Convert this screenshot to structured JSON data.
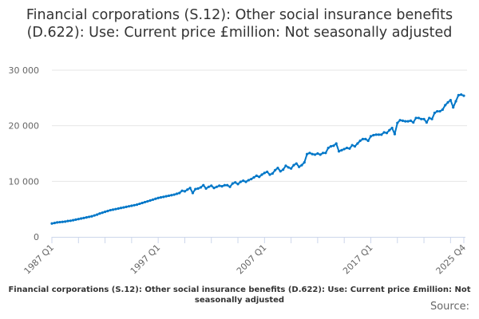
{
  "chart_data": {
    "type": "line",
    "title": "Financial corporations (S.12): Other social insurance benefits (D.622): Use: Current price £million: Not seasonally adjusted",
    "caption": "Financial corporations (S.12): Other social insurance benefits (D.622): Use: Current price £million: Not seasonally adjusted",
    "source_label": "Source:",
    "xlabel": "",
    "ylabel": "",
    "ylim": [
      0,
      30000
    ],
    "y_ticks": [
      0,
      10000,
      20000,
      30000
    ],
    "y_tick_labels": [
      "0",
      "10 000",
      "20 000",
      "30 000"
    ],
    "x_start": "1987 Q1",
    "x_tick_labels": [
      "1987 Q1",
      "1997 Q1",
      "2007 Q1",
      "2017 Q1",
      "2025 Q4"
    ],
    "x_tick_label_indices": [
      0,
      40,
      80,
      120,
      155
    ],
    "x_minor_tick_every_quarters": 10,
    "grid": true,
    "color": "#0077c8",
    "series": [
      {
        "name": "Financial corporations (S.12): Other social insurance benefits (D.622)",
        "values": [
          2400,
          2500,
          2600,
          2650,
          2700,
          2750,
          2850,
          2900,
          3000,
          3100,
          3200,
          3300,
          3400,
          3500,
          3600,
          3700,
          3850,
          4000,
          4200,
          4350,
          4500,
          4650,
          4800,
          4900,
          5000,
          5100,
          5200,
          5300,
          5400,
          5500,
          5600,
          5700,
          5800,
          5950,
          6100,
          6250,
          6400,
          6550,
          6700,
          6850,
          7000,
          7100,
          7200,
          7300,
          7400,
          7500,
          7600,
          7750,
          7900,
          8300,
          8200,
          8500,
          8800,
          7900,
          8600,
          8700,
          8900,
          9300,
          8700,
          9000,
          9200,
          8800,
          9000,
          9200,
          9100,
          9300,
          9300,
          9000,
          9600,
          9800,
          9500,
          9900,
          10100,
          9900,
          10200,
          10400,
          10700,
          11000,
          10800,
          11200,
          11500,
          11700,
          11200,
          11400,
          12000,
          12400,
          11800,
          12100,
          12800,
          12500,
          12300,
          12900,
          13200,
          12600,
          12900,
          13400,
          14900,
          15100,
          14900,
          14800,
          15000,
          14800,
          15100,
          15100,
          16000,
          16300,
          16400,
          16800,
          15400,
          15600,
          15800,
          16000,
          15900,
          16500,
          16300,
          16800,
          17300,
          17600,
          17600,
          17300,
          18100,
          18300,
          18400,
          18400,
          18400,
          18800,
          18700,
          19200,
          19600,
          18500,
          20500,
          21000,
          20900,
          20800,
          20800,
          20900,
          20600,
          21400,
          21400,
          21200,
          21200,
          20600,
          21400,
          21200,
          22300,
          22600,
          22600,
          22900,
          23700,
          24200,
          24600,
          23300,
          24400,
          25500,
          25600,
          25400
        ]
      }
    ]
  }
}
